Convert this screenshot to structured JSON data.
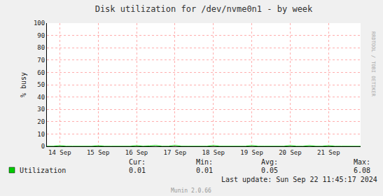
{
  "chart_data": {
    "type": "line",
    "title": "Disk utilization for /dev/nvme0n1 - by week",
    "y_label": "% busy",
    "categories": [
      null,
      null,
      "14 Sep",
      null,
      null,
      null,
      null,
      null,
      "15 Sep",
      null,
      null,
      null,
      null,
      null,
      "16 Sep",
      null,
      null,
      null,
      null,
      null,
      "17 Sep",
      null,
      null,
      null,
      null,
      null,
      "18 Sep",
      null,
      null,
      null,
      null,
      null,
      "19 Sep",
      null,
      null,
      null,
      null,
      null,
      "20 Sep",
      null,
      null,
      null,
      null,
      null,
      "21 Sep",
      null,
      null,
      null,
      null,
      null
    ],
    "series": [
      {
        "name": "Utilization",
        "color": "#00cc00",
        "values": [
          0.05,
          0.03,
          0.6,
          0.05,
          0.04,
          0.05,
          0.05,
          0.04,
          0.5,
          0.05,
          0.04,
          0.05,
          0.05,
          0.04,
          0.6,
          0.05,
          0.3,
          0.7,
          0.05,
          0.05,
          0.8,
          0.05,
          0.04,
          0.05,
          0.05,
          0.04,
          0.7,
          0.05,
          0.04,
          0.05,
          0.05,
          0.04,
          0.7,
          0.05,
          0.04,
          0.05,
          0.05,
          0.04,
          0.7,
          0.05,
          0.04,
          0.6,
          0.05,
          0.05,
          0.6,
          0.04,
          0.05,
          0.04,
          0.01,
          0.01
        ],
        "stats": [
          0.01,
          0.01,
          0.05,
          6.08
        ]
      }
    ],
    "stats_headers": [
      "Cur:",
      "Min:",
      "Avg:",
      "Max:"
    ],
    "ylim": [
      0,
      100
    ],
    "yticks": [
      0,
      10,
      20,
      30,
      40,
      50,
      60,
      70,
      80,
      90,
      100
    ],
    "grid": true,
    "legend": "bottom",
    "last_update": "Last update: Sun Sep 22 11:45:17 2024",
    "footer": "Munin 2.0.66",
    "watermark": "RRDTOOL / TOBI OETIKER"
  }
}
